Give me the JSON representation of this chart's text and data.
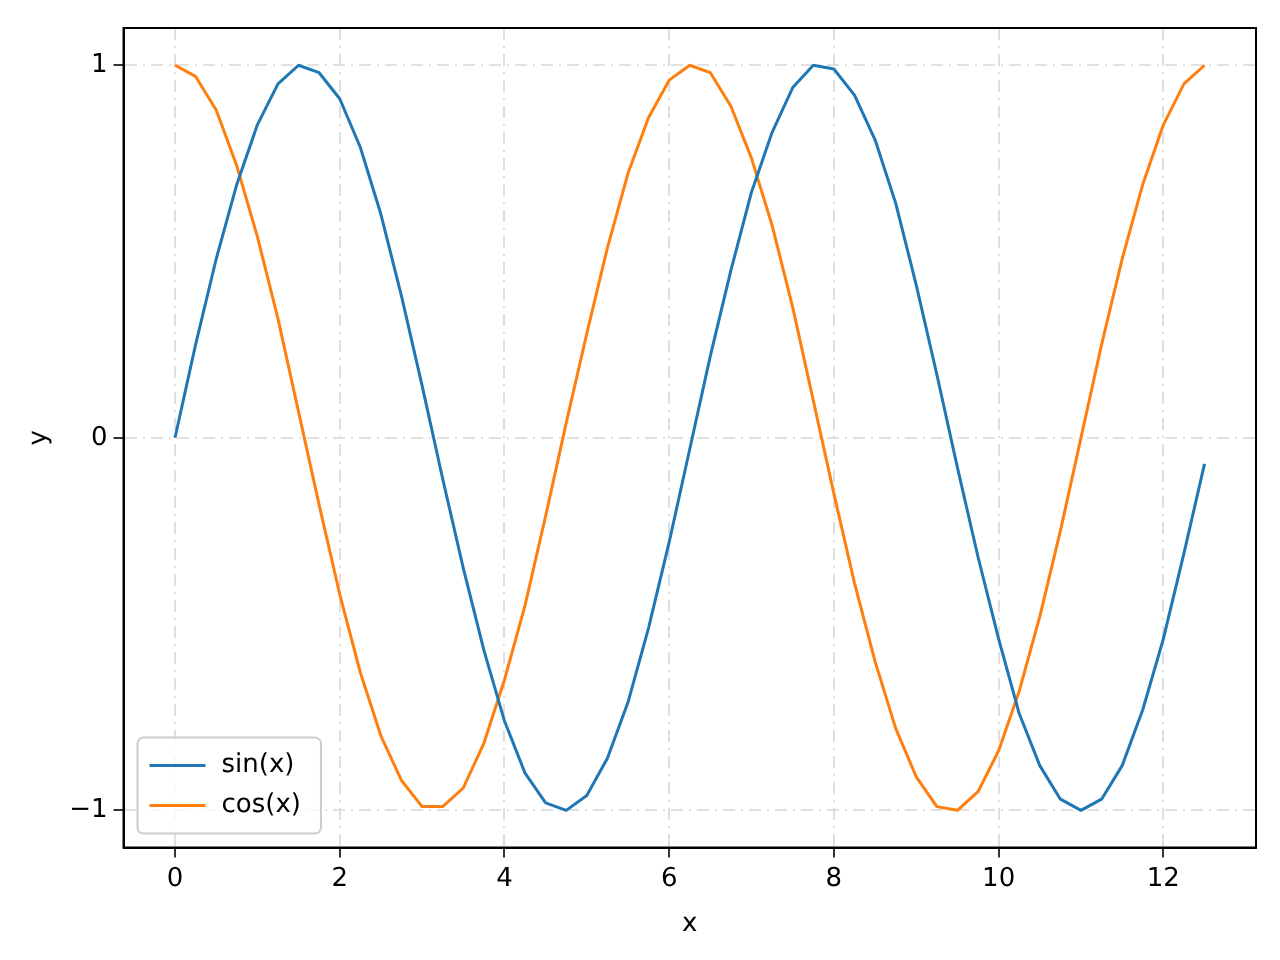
{
  "chart_data": {
    "type": "line",
    "xlabel": "x",
    "ylabel": "y",
    "x": [
      0,
      0.25,
      0.5,
      0.75,
      1,
      1.25,
      1.5,
      1.75,
      2,
      2.25,
      2.5,
      2.75,
      3,
      3.25,
      3.5,
      3.75,
      4,
      4.25,
      4.5,
      4.75,
      5,
      5.25,
      5.5,
      5.75,
      6,
      6.25,
      6.5,
      6.75,
      7,
      7.25,
      7.5,
      7.75,
      8,
      8.25,
      8.5,
      8.75,
      9,
      9.25,
      9.5,
      9.75,
      10,
      10.25,
      10.5,
      10.75,
      11,
      11.25,
      11.5,
      11.75,
      12,
      12.25,
      12.5
    ],
    "series": [
      {
        "name": "sin(x)",
        "color": "#1f77b4",
        "values": [
          0,
          0.25,
          0.48,
          0.68,
          0.84,
          0.95,
          1.0,
          0.98,
          0.91,
          0.78,
          0.6,
          0.38,
          0.14,
          -0.11,
          -0.35,
          -0.57,
          -0.76,
          -0.9,
          -0.98,
          -1.0,
          -0.96,
          -0.86,
          -0.71,
          -0.51,
          -0.28,
          -0.03,
          0.22,
          0.45,
          0.66,
          0.82,
          0.94,
          1.0,
          0.99,
          0.92,
          0.8,
          0.63,
          0.41,
          0.17,
          -0.08,
          -0.32,
          -0.54,
          -0.74,
          -0.88,
          -0.97,
          -1.0,
          -0.97,
          -0.88,
          -0.73,
          -0.54,
          -0.31,
          -0.07
        ]
      },
      {
        "name": "cos(x)",
        "color": "#ff7f0e",
        "values": [
          1,
          0.97,
          0.88,
          0.73,
          0.54,
          0.32,
          0.07,
          -0.18,
          -0.42,
          -0.63,
          -0.8,
          -0.92,
          -0.99,
          -0.99,
          -0.94,
          -0.82,
          -0.65,
          -0.45,
          -0.21,
          0.04,
          0.28,
          0.51,
          0.71,
          0.86,
          0.96,
          1.0,
          0.98,
          0.89,
          0.75,
          0.57,
          0.35,
          0.1,
          -0.15,
          -0.39,
          -0.6,
          -0.78,
          -0.91,
          -0.99,
          -1.0,
          -0.95,
          -0.84,
          -0.68,
          -0.48,
          -0.25,
          0.0,
          0.25,
          0.48,
          0.68,
          0.84,
          0.95,
          1.0
        ]
      }
    ],
    "xlim": [
      -0.625,
      13.125
    ],
    "xticks": [
      0,
      2,
      4,
      6,
      8,
      10,
      12
    ],
    "ylim": [
      -1.1,
      1.1
    ],
    "yticks": [
      {
        "value": -1,
        "label": "−1"
      },
      0,
      1
    ],
    "grid": true,
    "legend": "bottom left",
    "line_style": "solid",
    "marker": "none"
  }
}
